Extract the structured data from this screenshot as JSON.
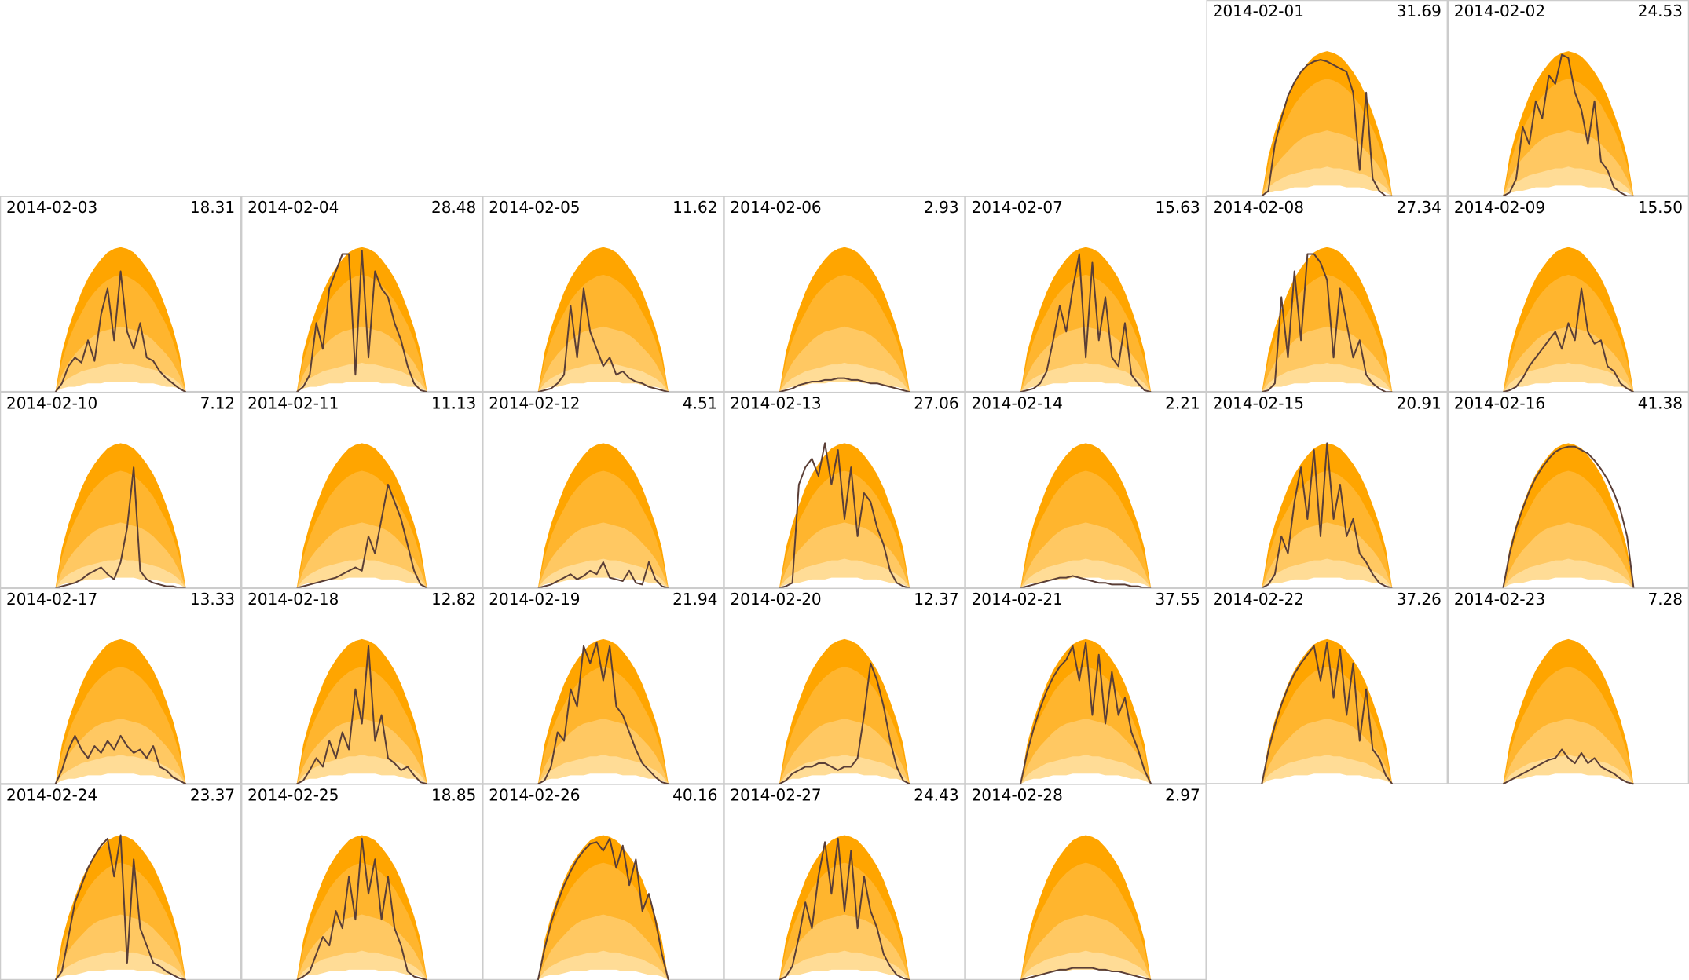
{
  "chart_data": {
    "type": "small-multiples",
    "x": [
      7,
      7.5,
      8,
      8.5,
      9,
      9.5,
      10,
      10.5,
      11,
      11.5,
      12,
      12.5,
      13,
      13.5,
      14,
      14.5,
      15,
      15.5,
      16,
      16.5,
      17
    ],
    "xlim": [
      2.75,
      21.25
    ],
    "ylim": [
      0,
      100
    ],
    "line_color": "#5a3e36",
    "bands": [
      {
        "color": "#ffa500",
        "values": [
          0,
          23,
          37,
          48,
          58,
          66,
          72,
          77,
          81,
          83,
          84,
          83,
          81,
          77,
          72,
          66,
          58,
          48,
          37,
          23,
          0
        ]
      },
      {
        "color": "#ffb52e",
        "values": [
          0,
          18,
          30,
          39,
          46,
          53,
          58,
          62,
          65,
          67,
          68,
          67,
          65,
          62,
          58,
          53,
          46,
          39,
          30,
          18,
          0
        ]
      },
      {
        "color": "#ffc862",
        "values": [
          0,
          10,
          17,
          22,
          26,
          30,
          33,
          35,
          36,
          37,
          38,
          37,
          36,
          35,
          33,
          30,
          26,
          22,
          17,
          10,
          0
        ]
      },
      {
        "color": "#ffdc96",
        "values": [
          0,
          5,
          8,
          10,
          12,
          13,
          14,
          15,
          16,
          16,
          17,
          16,
          16,
          15,
          14,
          13,
          12,
          10,
          8,
          5,
          0
        ]
      },
      {
        "color": "#ffffff",
        "values": [
          0,
          2,
          3,
          3,
          4,
          5,
          5,
          5,
          6,
          6,
          6,
          6,
          6,
          5,
          5,
          5,
          4,
          3,
          3,
          2,
          0
        ]
      }
    ],
    "panels": [
      {
        "date": "2014-02-01",
        "total": 31.69,
        "values": [
          0,
          3,
          30,
          45,
          58,
          66,
          72,
          76,
          78,
          79,
          78,
          76,
          74,
          72,
          60,
          15,
          60,
          10,
          3,
          0,
          0
        ]
      },
      {
        "date": "2014-02-02",
        "total": 24.53,
        "values": [
          0,
          2,
          10,
          40,
          30,
          55,
          45,
          70,
          65,
          82,
          80,
          60,
          50,
          30,
          55,
          20,
          15,
          5,
          2,
          0,
          0
        ]
      },
      {
        "date": "2014-02-03",
        "total": 18.31,
        "values": [
          0,
          5,
          15,
          20,
          17,
          30,
          18,
          45,
          60,
          30,
          70,
          35,
          25,
          40,
          20,
          18,
          12,
          8,
          5,
          2,
          0
        ]
      },
      {
        "date": "2014-02-04",
        "total": 28.48,
        "values": [
          0,
          3,
          10,
          40,
          25,
          60,
          70,
          80,
          80,
          10,
          82,
          20,
          70,
          60,
          55,
          40,
          30,
          15,
          5,
          1,
          0
        ]
      },
      {
        "date": "2014-02-05",
        "total": 11.62,
        "values": [
          0,
          1,
          2,
          5,
          10,
          50,
          20,
          60,
          35,
          25,
          15,
          20,
          10,
          12,
          8,
          6,
          5,
          3,
          2,
          1,
          0
        ]
      },
      {
        "date": "2014-02-06",
        "total": 2.93,
        "values": [
          0,
          1,
          2,
          4,
          5,
          6,
          6,
          7,
          7,
          8,
          8,
          7,
          7,
          6,
          5,
          5,
          4,
          3,
          2,
          1,
          0
        ]
      },
      {
        "date": "2014-02-07",
        "total": 15.63,
        "values": [
          0,
          1,
          2,
          5,
          12,
          30,
          50,
          35,
          60,
          80,
          20,
          75,
          30,
          55,
          20,
          15,
          40,
          10,
          5,
          1,
          0
        ]
      },
      {
        "date": "2014-02-08",
        "total": 27.34,
        "values": [
          0,
          1,
          5,
          55,
          20,
          70,
          30,
          80,
          80,
          75,
          65,
          20,
          60,
          40,
          20,
          30,
          10,
          5,
          2,
          0,
          0
        ]
      },
      {
        "date": "2014-02-09",
        "total": 15.5,
        "total_label": "15.50",
        "values": [
          0,
          1,
          3,
          8,
          15,
          20,
          25,
          30,
          35,
          25,
          40,
          30,
          60,
          35,
          28,
          30,
          15,
          12,
          5,
          2,
          0
        ]
      },
      {
        "date": "2014-02-10",
        "total": 7.12,
        "values": [
          0,
          1,
          2,
          3,
          5,
          8,
          10,
          12,
          8,
          5,
          15,
          35,
          70,
          10,
          5,
          3,
          2,
          1,
          1,
          0,
          0
        ]
      },
      {
        "date": "2014-02-11",
        "total": 11.13,
        "values": [
          0,
          1,
          2,
          3,
          4,
          5,
          6,
          8,
          10,
          12,
          10,
          30,
          20,
          40,
          60,
          50,
          40,
          25,
          10,
          2,
          0
        ]
      },
      {
        "date": "2014-02-12",
        "total": 4.51,
        "values": [
          0,
          1,
          2,
          4,
          6,
          8,
          5,
          7,
          10,
          8,
          15,
          6,
          5,
          4,
          10,
          3,
          2,
          15,
          5,
          1,
          0
        ]
      },
      {
        "date": "2014-02-13",
        "total": 27.06,
        "values": [
          0,
          1,
          3,
          60,
          70,
          75,
          65,
          84,
          60,
          80,
          40,
          70,
          30,
          55,
          50,
          35,
          25,
          10,
          3,
          1,
          0
        ]
      },
      {
        "date": "2014-02-14",
        "total": 2.21,
        "values": [
          0,
          1,
          2,
          3,
          4,
          5,
          6,
          6,
          7,
          6,
          5,
          4,
          3,
          3,
          2,
          2,
          2,
          1,
          1,
          0,
          0
        ]
      },
      {
        "date": "2014-02-15",
        "total": 20.91,
        "values": [
          0,
          2,
          8,
          30,
          20,
          50,
          70,
          40,
          80,
          30,
          84,
          40,
          60,
          30,
          40,
          20,
          15,
          8,
          3,
          1,
          0
        ]
      },
      {
        "date": "2014-02-16",
        "total": 41.38,
        "values": [
          0,
          20,
          35,
          46,
          56,
          64,
          70,
          75,
          79,
          81,
          82,
          82,
          80,
          78,
          74,
          69,
          63,
          55,
          45,
          30,
          0
        ]
      },
      {
        "date": "2014-02-17",
        "total": 13.33,
        "values": [
          0,
          8,
          20,
          28,
          20,
          15,
          22,
          18,
          25,
          20,
          28,
          22,
          18,
          20,
          15,
          22,
          10,
          8,
          4,
          2,
          0
        ]
      },
      {
        "date": "2014-02-18",
        "total": 12.82,
        "values": [
          0,
          2,
          8,
          15,
          10,
          25,
          15,
          30,
          20,
          55,
          35,
          80,
          25,
          40,
          15,
          12,
          8,
          10,
          5,
          1,
          0
        ]
      },
      {
        "date": "2014-02-19",
        "total": 21.94,
        "values": [
          0,
          2,
          10,
          30,
          25,
          55,
          45,
          80,
          70,
          82,
          60,
          80,
          45,
          40,
          30,
          20,
          12,
          8,
          4,
          1,
          0
        ]
      },
      {
        "date": "2014-02-20",
        "total": 12.37,
        "values": [
          0,
          2,
          6,
          8,
          10,
          10,
          12,
          12,
          10,
          8,
          10,
          10,
          15,
          40,
          70,
          60,
          45,
          25,
          10,
          2,
          0
        ]
      },
      {
        "date": "2014-02-21",
        "total": 37.55,
        "values": [
          0,
          18,
          32,
          44,
          54,
          62,
          68,
          72,
          80,
          60,
          82,
          40,
          75,
          35,
          65,
          40,
          50,
          30,
          20,
          8,
          0
        ]
      },
      {
        "date": "2014-02-22",
        "total": 37.26,
        "values": [
          0,
          19,
          34,
          46,
          56,
          64,
          70,
          75,
          80,
          60,
          82,
          50,
          78,
          40,
          70,
          25,
          55,
          20,
          15,
          5,
          0
        ]
      },
      {
        "date": "2014-02-23",
        "total": 7.28,
        "values": [
          0,
          2,
          4,
          6,
          8,
          10,
          12,
          14,
          15,
          20,
          15,
          12,
          18,
          12,
          15,
          10,
          8,
          6,
          3,
          1,
          0
        ]
      },
      {
        "date": "2014-02-24",
        "total": 23.37,
        "values": [
          0,
          5,
          25,
          45,
          55,
          65,
          72,
          78,
          82,
          60,
          84,
          10,
          70,
          30,
          20,
          10,
          8,
          5,
          3,
          1,
          0
        ]
      },
      {
        "date": "2014-02-25",
        "total": 18.85,
        "values": [
          0,
          2,
          5,
          15,
          25,
          20,
          40,
          30,
          60,
          35,
          82,
          50,
          70,
          35,
          60,
          30,
          20,
          5,
          2,
          1,
          0
        ]
      },
      {
        "date": "2014-02-26",
        "total": 40.16,
        "values": [
          0,
          18,
          33,
          45,
          55,
          63,
          70,
          75,
          79,
          80,
          75,
          82,
          65,
          78,
          55,
          70,
          40,
          50,
          35,
          15,
          0
        ]
      },
      {
        "date": "2014-02-27",
        "total": 24.43,
        "values": [
          0,
          2,
          8,
          25,
          45,
          30,
          60,
          80,
          50,
          82,
          40,
          75,
          30,
          60,
          40,
          30,
          15,
          8,
          3,
          1,
          0
        ]
      },
      {
        "date": "2014-02-28",
        "total": 2.97,
        "values": [
          0,
          1,
          2,
          3,
          4,
          5,
          6,
          6,
          7,
          7,
          7,
          7,
          6,
          6,
          5,
          5,
          4,
          3,
          2,
          1,
          0
        ]
      }
    ]
  }
}
